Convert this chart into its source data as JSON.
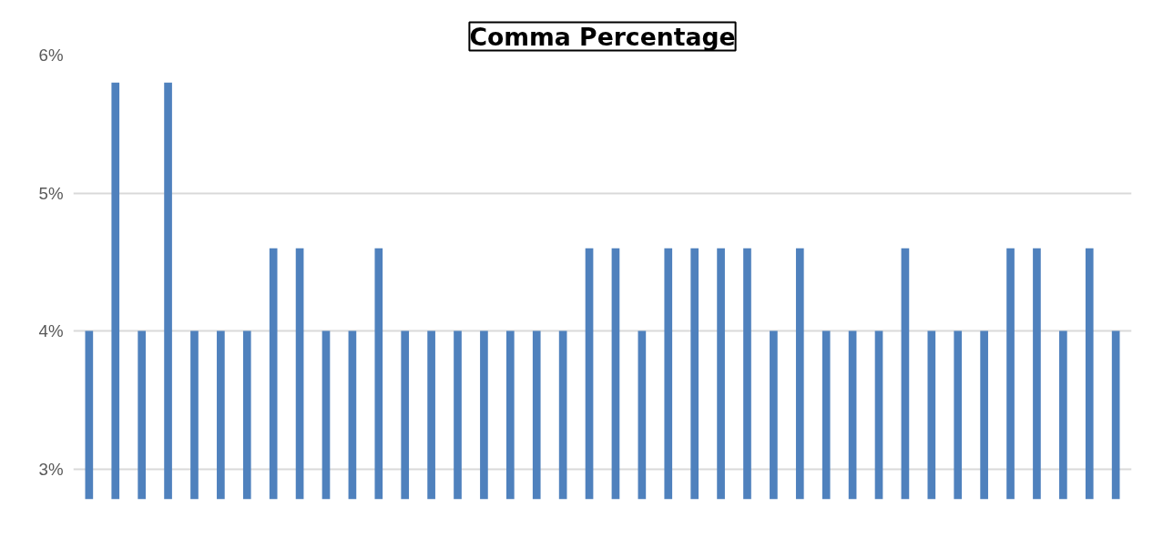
{
  "chart_data": {
    "type": "bar",
    "title": "Comma Percentage",
    "categories": [
      null,
      null,
      null,
      null,
      null,
      null,
      null,
      null,
      null,
      null,
      null,
      null,
      null,
      null,
      null,
      null,
      null,
      null,
      null,
      null,
      null,
      null,
      null,
      null,
      null,
      null,
      null,
      null,
      null,
      null,
      null,
      null,
      null,
      null,
      null,
      null,
      null,
      null,
      null,
      null
    ],
    "values": [
      4,
      5.8,
      4,
      5.8,
      4,
      4,
      4,
      4.6,
      4.6,
      4,
      4,
      4.6,
      4,
      4,
      4,
      4,
      4,
      4,
      4,
      4.6,
      4.6,
      4,
      4.6,
      4.6,
      4.6,
      4.6,
      4,
      4.6,
      4,
      4,
      4,
      4.6,
      4,
      4,
      4,
      4.6,
      4.6,
      4,
      4.6,
      4
    ],
    "color": "#4f81bd",
    "ylim": [
      2.78,
      6
    ],
    "yticks": [
      {
        "value": 3,
        "label": "3%"
      },
      {
        "value": 4,
        "label": "4%"
      },
      {
        "value": 5,
        "label": "5%"
      },
      {
        "value": 6,
        "label": "6%"
      }
    ],
    "grid": "y",
    "tick_labels": "y"
  }
}
